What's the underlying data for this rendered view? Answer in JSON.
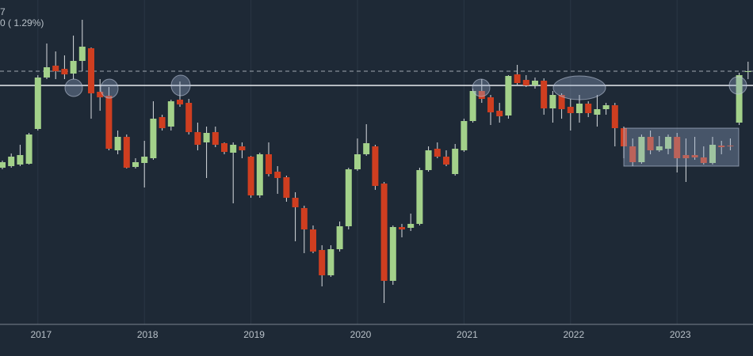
{
  "chart_data": {
    "type": "candlestick",
    "annotations": [
      "7",
      "0 ( 1.29%)"
    ],
    "categories": [
      null,
      null,
      null,
      null,
      "2017",
      null,
      null,
      null,
      null,
      null,
      null,
      null,
      null,
      null,
      null,
      null,
      "2018",
      null,
      null,
      null,
      null,
      null,
      null,
      null,
      null,
      null,
      null,
      null,
      "2019",
      null,
      null,
      null,
      null,
      null,
      null,
      null,
      null,
      null,
      null,
      null,
      "2020",
      null,
      null,
      null,
      null,
      null,
      null,
      null,
      null,
      null,
      null,
      null,
      "2021",
      null,
      null,
      null,
      null,
      null,
      null,
      null,
      null,
      null,
      null,
      null,
      "2022",
      null,
      null,
      null,
      null,
      null,
      null,
      null,
      null,
      null,
      null,
      null,
      "2023",
      null,
      null,
      null,
      null,
      null,
      null,
      null,
      null
    ],
    "open": [
      198,
      200,
      202,
      203,
      247,
      312,
      327,
      323,
      317,
      333,
      349,
      294,
      289,
      220,
      237,
      199,
      204,
      210,
      262,
      250,
      284,
      280,
      243,
      230,
      243,
      229,
      217,
      225,
      212,
      163,
      215,
      193,
      186,
      160,
      147,
      120,
      94,
      62,
      95,
      124,
      196,
      215,
      225,
      178,
      55,
      123,
      122,
      127,
      195,
      222,
      212,
      190,
      220,
      257,
      295,
      287,
      270,
      264,
      316,
      309,
      302,
      308,
      273,
      290,
      275,
      267,
      279,
      265,
      272,
      277,
      248,
      225,
      205,
      237,
      220,
      222,
      237,
      214,
      214,
      211,
      204,
      226,
      226,
      255,
      319
    ],
    "high": [
      207,
      216,
      227,
      242,
      315,
      355,
      345,
      340,
      365,
      385,
      350,
      310,
      300,
      245,
      240,
      210,
      232,
      282,
      265,
      284,
      307,
      285,
      255,
      250,
      250,
      230,
      230,
      230,
      213,
      217,
      230,
      200,
      188,
      167,
      150,
      125,
      100,
      100,
      130,
      198,
      235,
      253,
      227,
      180,
      125,
      127,
      140,
      198,
      225,
      230,
      220,
      228,
      260,
      298,
      310,
      290,
      280,
      315,
      328,
      315,
      312,
      311,
      295,
      292,
      285,
      290,
      282,
      290,
      280,
      280,
      250,
      235,
      240,
      245,
      238,
      240,
      242,
      235,
      237,
      225,
      237,
      232,
      235,
      318,
      332
    ],
    "low": [
      196,
      198,
      200,
      202,
      245,
      310,
      310,
      310,
      310,
      320,
      260,
      270,
      220,
      215,
      197,
      197,
      173,
      208,
      245,
      245,
      275,
      240,
      220,
      185,
      224,
      215,
      153,
      210,
      160,
      160,
      187,
      165,
      155,
      105,
      90,
      90,
      48,
      60,
      92,
      120,
      194,
      213,
      170,
      27,
      50,
      110,
      118,
      125,
      193,
      210,
      200,
      188,
      218,
      255,
      280,
      252,
      255,
      260,
      303,
      300,
      298,
      265,
      255,
      260,
      245,
      255,
      262,
      250,
      265,
      225,
      210,
      200,
      203,
      215,
      218,
      215,
      192,
      180,
      208,
      202,
      202,
      215,
      220,
      252,
      310
    ],
    "close": [
      205,
      212,
      214,
      240,
      312,
      325,
      320,
      316,
      333,
      351,
      292,
      287,
      222,
      237,
      198,
      205,
      212,
      260,
      248,
      282,
      278,
      243,
      227,
      242,
      227,
      218,
      227,
      220,
      163,
      215,
      190,
      185,
      160,
      148,
      120,
      92,
      62,
      95,
      124,
      196,
      215,
      229,
      175,
      55,
      123,
      120,
      127,
      195,
      220,
      212,
      202,
      222,
      257,
      295,
      285,
      268,
      263,
      314,
      305,
      302,
      308,
      273,
      290,
      272,
      267,
      279,
      267,
      272,
      277,
      248,
      225,
      205,
      237,
      220,
      225,
      237,
      210,
      210,
      211,
      204,
      227,
      224,
      225,
      315,
      320
    ],
    "up_color": "#a3d18a",
    "down_color": "#cf3e20",
    "wick_color": "#d8dce0",
    "ylim": [
      0,
      410
    ],
    "grid": true,
    "reference_lines": [
      {
        "value": 302,
        "style": "solid"
      },
      {
        "value": 320,
        "style": "dashed"
      }
    ]
  }
}
